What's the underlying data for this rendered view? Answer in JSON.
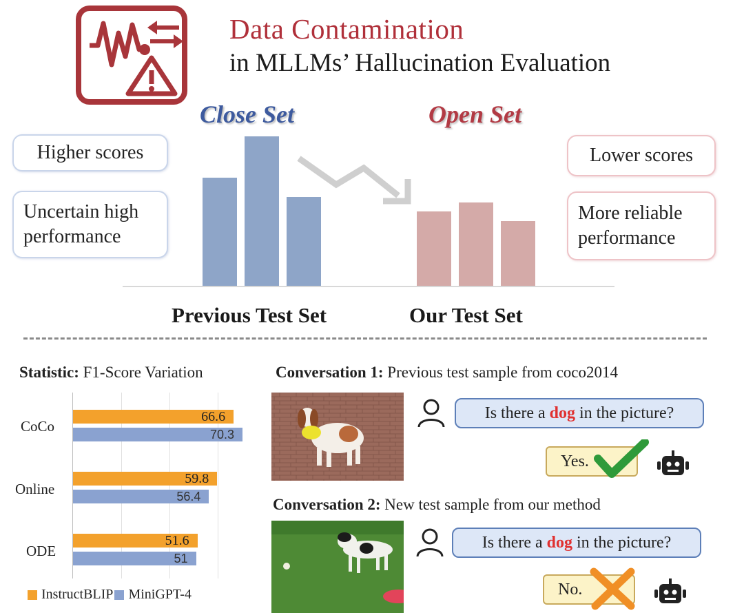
{
  "header": {
    "title_line1": "Data Contamination",
    "title_line2": "in MLLMs’ Hallucination Evaluation",
    "icon": "contamination-warning-icon"
  },
  "sets": {
    "close_label": "Close Set",
    "open_label": "Open Set",
    "previous_label": "Previous Test Set",
    "our_label": "Our Test Set"
  },
  "left_notes": [
    "Higher scores",
    "Uncertain high performance"
  ],
  "right_notes": [
    "Lower scores",
    "More reliable performance"
  ],
  "statistic": {
    "title_bold": "Statistic:",
    "title_rest": "F1-Score Variation"
  },
  "chart_data": {
    "type": "bar",
    "orientation": "horizontal",
    "title": "Statistic: F1-Score Variation",
    "categories": [
      "CoCo",
      "Online",
      "ODE"
    ],
    "series": [
      {
        "name": "InstructBLIP",
        "color": "#f3a12c",
        "values": [
          66.6,
          59.8,
          51.6
        ],
        "labels": [
          "66.6",
          "59.8",
          "51.6"
        ]
      },
      {
        "name": "MiniGPT-4",
        "color": "#8aa2d0",
        "values": [
          70.3,
          56.4,
          51
        ],
        "labels": [
          "70.3",
          "56.4",
          "51"
        ]
      }
    ],
    "legend": "bottom",
    "grid": true,
    "xlim": [
      0,
      80
    ]
  },
  "conversations": [
    {
      "title_bold": "Conversation 1:",
      "title_rest": "Previous test sample from coco2014",
      "question_pre": "Is there a",
      "question_key": "dog",
      "question_post": "in the picture?",
      "answer": "Yes.",
      "result_icon": "check-icon"
    },
    {
      "title_bold": "Conversation 2:",
      "title_rest": "New test sample from our method",
      "question_pre": "Is there a",
      "question_key": "dog",
      "question_post": "in the picture?",
      "answer": "No.",
      "result_icon": "cross-icon"
    }
  ],
  "colors": {
    "title_red": "#b0303a",
    "close_blue": "#3d5a9e",
    "bar_blue": "#8ea5c8",
    "bar_red": "#d4aaa8",
    "keyword_red": "#e03030"
  }
}
